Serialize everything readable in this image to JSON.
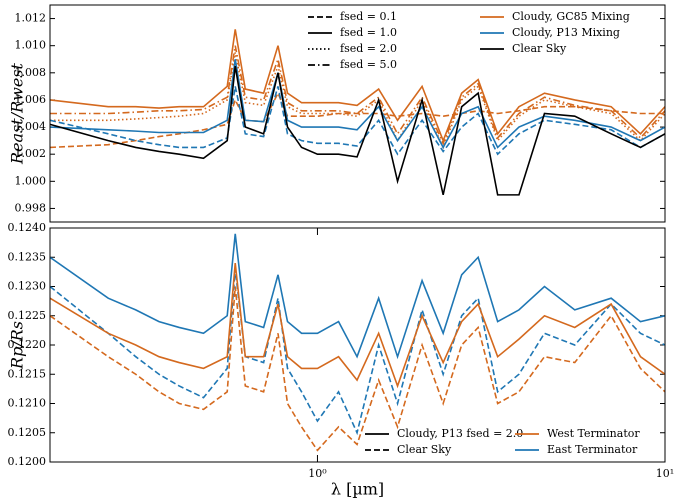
{
  "chart_data": [
    {
      "type": "line",
      "ylabel": "Reast/Rwest",
      "x": [
        0.17,
        0.25,
        0.3,
        0.35,
        0.4,
        0.47,
        0.55,
        0.58,
        0.62,
        0.7,
        0.77,
        0.82,
        0.9,
        1.0,
        1.15,
        1.3,
        1.5,
        1.7,
        2.0,
        2.3,
        2.6,
        2.9,
        3.3,
        3.8,
        4.5,
        5.5,
        7,
        8.5,
        10
      ],
      "xlim": [
        0.17,
        10
      ],
      "xscale": "log",
      "ylim": [
        0.997,
        1.013
      ],
      "yticks": [
        0.998,
        {
          "value": 1.0,
          "label": "1.000"
        },
        1.002,
        1.004,
        1.006,
        1.008,
        {
          "value": 1.01,
          "label": "1.010"
        },
        1.012
      ],
      "legend_position": "upper right",
      "legend": [
        {
          "label": "fsed = 0.1",
          "dash": "dashed"
        },
        {
          "label": "fsed = 1.0",
          "dash": "solid"
        },
        {
          "label": "fsed = 2.0",
          "dash": "dotted"
        },
        {
          "label": "fsed = 5.0",
          "dash": "dashdot"
        },
        {
          "label": "Cloudy, GC85 Mixing",
          "color": "#d4691e"
        },
        {
          "label": "Cloudy, P13 Mixing",
          "color": "#1f77b4"
        },
        {
          "label": "Clear Sky",
          "color": "#000000"
        }
      ],
      "series": [
        {
          "color": "#d4691e",
          "dash": "dashed",
          "values": [
            1.0025,
            1.0027,
            1.003,
            1.0033,
            1.0035,
            1.0038,
            1.0042,
            1.006,
            1.0045,
            1.0044,
            1.0065,
            1.0048,
            1.0048,
            1.0048,
            1.005,
            1.005,
            1.005,
            1.0048,
            1.005,
            1.0048,
            1.005,
            1.0052,
            1.005,
            1.0052,
            1.0055,
            1.0055,
            1.0052,
            1.005,
            1.005
          ]
        },
        {
          "color": "#d4691e",
          "dash": "dotted",
          "values": [
            1.0045,
            1.0045,
            1.0046,
            1.0047,
            1.0048,
            1.005,
            1.006,
            1.0095,
            1.0058,
            1.0056,
            1.0085,
            1.0055,
            1.005,
            1.005,
            1.005,
            1.0048,
            1.006,
            1.003,
            1.006,
            1.0025,
            1.006,
            1.007,
            1.003,
            1.0048,
            1.006,
            1.0055,
            1.005,
            1.003,
            1.005
          ]
        },
        {
          "color": "#d4691e",
          "dash": "dashdot",
          "values": [
            1.005,
            1.005,
            1.0051,
            1.0052,
            1.0052,
            1.0053,
            1.0062,
            1.01,
            1.0062,
            1.006,
            1.009,
            1.0058,
            1.0052,
            1.0052,
            1.0052,
            1.005,
            1.0062,
            1.0035,
            1.0062,
            1.0028,
            1.0062,
            1.0072,
            1.0032,
            1.005,
            1.0062,
            1.0056,
            1.0052,
            1.0032,
            1.0052
          ]
        },
        {
          "color": "#d4691e",
          "dash": "solid",
          "values": [
            1.006,
            1.0055,
            1.0055,
            1.0054,
            1.0055,
            1.0055,
            1.007,
            1.0112,
            1.0068,
            1.0065,
            1.01,
            1.0065,
            1.0058,
            1.0058,
            1.0058,
            1.0056,
            1.0068,
            1.0045,
            1.007,
            1.003,
            1.0065,
            1.0075,
            1.0035,
            1.0055,
            1.0065,
            1.006,
            1.0055,
            1.0035,
            1.0055
          ]
        },
        {
          "color": "#1f77b4",
          "dash": "dashed",
          "values": [
            1.0045,
            1.0035,
            1.003,
            1.0027,
            1.0025,
            1.0025,
            1.0032,
            1.007,
            1.0035,
            1.0033,
            1.007,
            1.0035,
            1.003,
            1.0028,
            1.0028,
            1.0026,
            1.0045,
            1.002,
            1.0045,
            1.0022,
            1.004,
            1.005,
            1.002,
            1.0035,
            1.0045,
            1.0042,
            1.0038,
            1.0025,
            1.0035
          ]
        },
        {
          "color": "#1f77b4",
          "dash": "solid",
          "values": [
            1.004,
            1.0038,
            1.0037,
            1.0036,
            1.0036,
            1.0036,
            1.0045,
            1.009,
            1.0045,
            1.0044,
            1.008,
            1.0045,
            1.004,
            1.004,
            1.004,
            1.0038,
            1.0055,
            1.003,
            1.0055,
            1.0025,
            1.005,
            1.0055,
            1.0025,
            1.004,
            1.0048,
            1.0045,
            1.004,
            1.003,
            1.004
          ]
        },
        {
          "color": "#000000",
          "dash": "solid",
          "values": [
            1.0042,
            1.003,
            1.0025,
            1.0022,
            1.002,
            1.0017,
            1.003,
            1.0085,
            1.004,
            1.0035,
            1.008,
            1.004,
            1.0025,
            1.002,
            1.002,
            1.0018,
            1.006,
            1.0,
            1.006,
            0.999,
            1.0055,
            1.0065,
            0.999,
            0.999,
            1.005,
            1.0048,
            1.0035,
            1.0025,
            1.0035
          ]
        }
      ]
    },
    {
      "type": "line",
      "ylabel": "Rp/Rs",
      "xlabel": "λ [µm]",
      "x": [
        0.17,
        0.25,
        0.3,
        0.35,
        0.4,
        0.47,
        0.55,
        0.58,
        0.62,
        0.7,
        0.77,
        0.82,
        0.9,
        1.0,
        1.15,
        1.3,
        1.5,
        1.7,
        2.0,
        2.3,
        2.6,
        2.9,
        3.3,
        3.8,
        4.5,
        5.5,
        7,
        8.5,
        10
      ],
      "xlim": [
        0.17,
        10
      ],
      "xscale": "log",
      "xticks": [
        {
          "value": 1,
          "label": "10⁰"
        },
        {
          "value": 10,
          "label": "10¹"
        }
      ],
      "ylim": [
        0.12,
        0.124
      ],
      "yticks": [
        {
          "value": 0.12,
          "label": "0.1200"
        },
        0.1205,
        {
          "value": 0.121,
          "label": "0.1210"
        },
        0.1215,
        {
          "value": 0.122,
          "label": "0.1220"
        },
        0.1225,
        {
          "value": 0.123,
          "label": "0.1230"
        },
        0.1235,
        {
          "value": 0.124,
          "label": "0.1240"
        }
      ],
      "legend_position": "lower right",
      "legend": [
        {
          "label": "Cloudy, P13 fsed = 2.0",
          "dash": "solid"
        },
        {
          "label": "Clear Sky",
          "dash": "dashed"
        },
        {
          "label": "West Terminator",
          "color": "#d4691e"
        },
        {
          "label": "East Terminator",
          "color": "#1f77b4"
        }
      ],
      "series": [
        {
          "color": "#1f77b4",
          "dash": "solid",
          "values": [
            0.1235,
            0.1228,
            0.1226,
            0.1224,
            0.1223,
            0.1222,
            0.1225,
            0.1239,
            0.1224,
            0.1223,
            0.1232,
            0.1224,
            0.1222,
            0.1222,
            0.1224,
            0.1218,
            0.1228,
            0.1218,
            0.1231,
            0.1222,
            0.1232,
            0.1235,
            0.1224,
            0.1226,
            0.123,
            0.1226,
            0.1228,
            0.1224,
            0.1225
          ]
        },
        {
          "color": "#1f77b4",
          "dash": "dashed",
          "values": [
            0.123,
            0.1222,
            0.1218,
            0.1215,
            0.1213,
            0.1211,
            0.1216,
            0.1233,
            0.1218,
            0.1217,
            0.1228,
            0.1216,
            0.1212,
            0.1207,
            0.1212,
            0.1205,
            0.122,
            0.121,
            0.1226,
            0.1215,
            0.1225,
            0.1228,
            0.1212,
            0.1215,
            0.1222,
            0.122,
            0.1227,
            0.1222,
            0.122
          ]
        },
        {
          "color": "#d4691e",
          "dash": "solid",
          "values": [
            0.1228,
            0.1222,
            0.122,
            0.1218,
            0.1217,
            0.1216,
            0.1218,
            0.1234,
            0.1218,
            0.1218,
            0.1227,
            0.1218,
            0.1216,
            0.1216,
            0.1218,
            0.1214,
            0.1222,
            0.1213,
            0.1225,
            0.1217,
            0.1224,
            0.1227,
            0.1218,
            0.1221,
            0.1225,
            0.1223,
            0.1227,
            0.1218,
            0.1215
          ]
        },
        {
          "color": "#d4691e",
          "dash": "dashed",
          "values": [
            0.1225,
            0.1218,
            0.1215,
            0.1212,
            0.121,
            0.1209,
            0.1212,
            0.123,
            0.1213,
            0.1212,
            0.1222,
            0.121,
            0.1206,
            0.1202,
            0.1206,
            0.1203,
            0.1214,
            0.1206,
            0.122,
            0.121,
            0.122,
            0.1223,
            0.121,
            0.1212,
            0.1218,
            0.1217,
            0.1225,
            0.1216,
            0.1212
          ]
        }
      ]
    }
  ]
}
